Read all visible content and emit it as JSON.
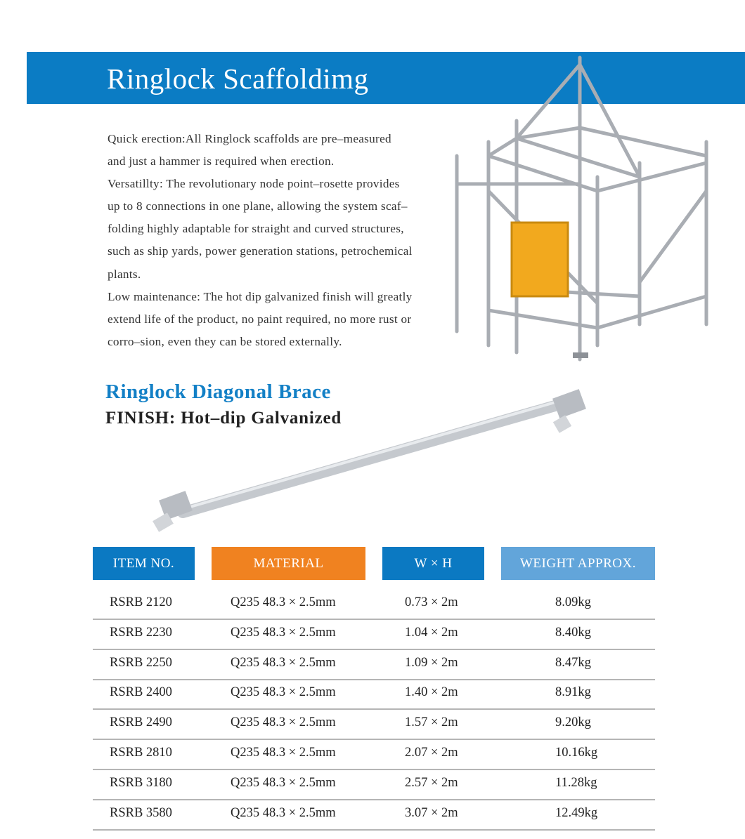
{
  "header": {
    "title": "Ringlock Scaffoldimg",
    "band_color": "#0b7cc4"
  },
  "description": {
    "lines": [
      "Quick erection:All Ringlock scaffolds are pre–measured",
      "and just a hammer is required when erection.",
      "Versatillty: The revolutionary node point–rosette provides",
      "up to 8 connections in one plane, allowing the system scaf–",
      "folding highly adaptable for straight and curved structures,",
      "such as ship yards, power generation stations, petrochemical",
      "plants.",
      "Low maintenance: The hot dip galvanized finish will greatly",
      "extend life of the product, no paint required, no more rust or",
      "corro–sion, even they can be stored externally."
    ]
  },
  "product": {
    "name": "Ringlock Diagonal Brace",
    "finish": "FINISH:  Hot–dip Galvanized"
  },
  "table": {
    "headers": [
      {
        "label": "ITEM NO.",
        "color": "#0b79c2"
      },
      {
        "label": "MATERIAL",
        "color": "#f08220"
      },
      {
        "label": "W × H",
        "color": "#0b79c2"
      },
      {
        "label": "WEIGHT APPROX.",
        "color": "#62a5da"
      }
    ],
    "rows": [
      [
        "RSRB 2120",
        "Q235  48.3 × 2.5mm",
        "0.73 × 2m",
        "8.09kg"
      ],
      [
        "RSRB 2230",
        "Q235  48.3 × 2.5mm",
        "1.04 × 2m",
        "8.40kg"
      ],
      [
        "RSRB 2250",
        "Q235  48.3 × 2.5mm",
        "1.09 × 2m",
        "8.47kg"
      ],
      [
        "RSRB 2400",
        "Q235  48.3 × 2.5mm",
        "1.40 × 2m",
        "8.91kg"
      ],
      [
        "RSRB 2490",
        "Q235  48.3 × 2.5mm",
        "1.57 × 2m",
        "9.20kg"
      ],
      [
        "RSRB 2810",
        "Q235  48.3 × 2.5mm",
        "2.07 × 2m",
        "10.16kg"
      ],
      [
        "RSRB 3180",
        "Q235  48.3 × 2.5mm",
        "2.57 × 2m",
        "11.28kg"
      ],
      [
        "RSRB 3580",
        "Q235  48.3 × 2.5mm",
        "3.07 × 2m",
        "12.49kg"
      ]
    ]
  }
}
